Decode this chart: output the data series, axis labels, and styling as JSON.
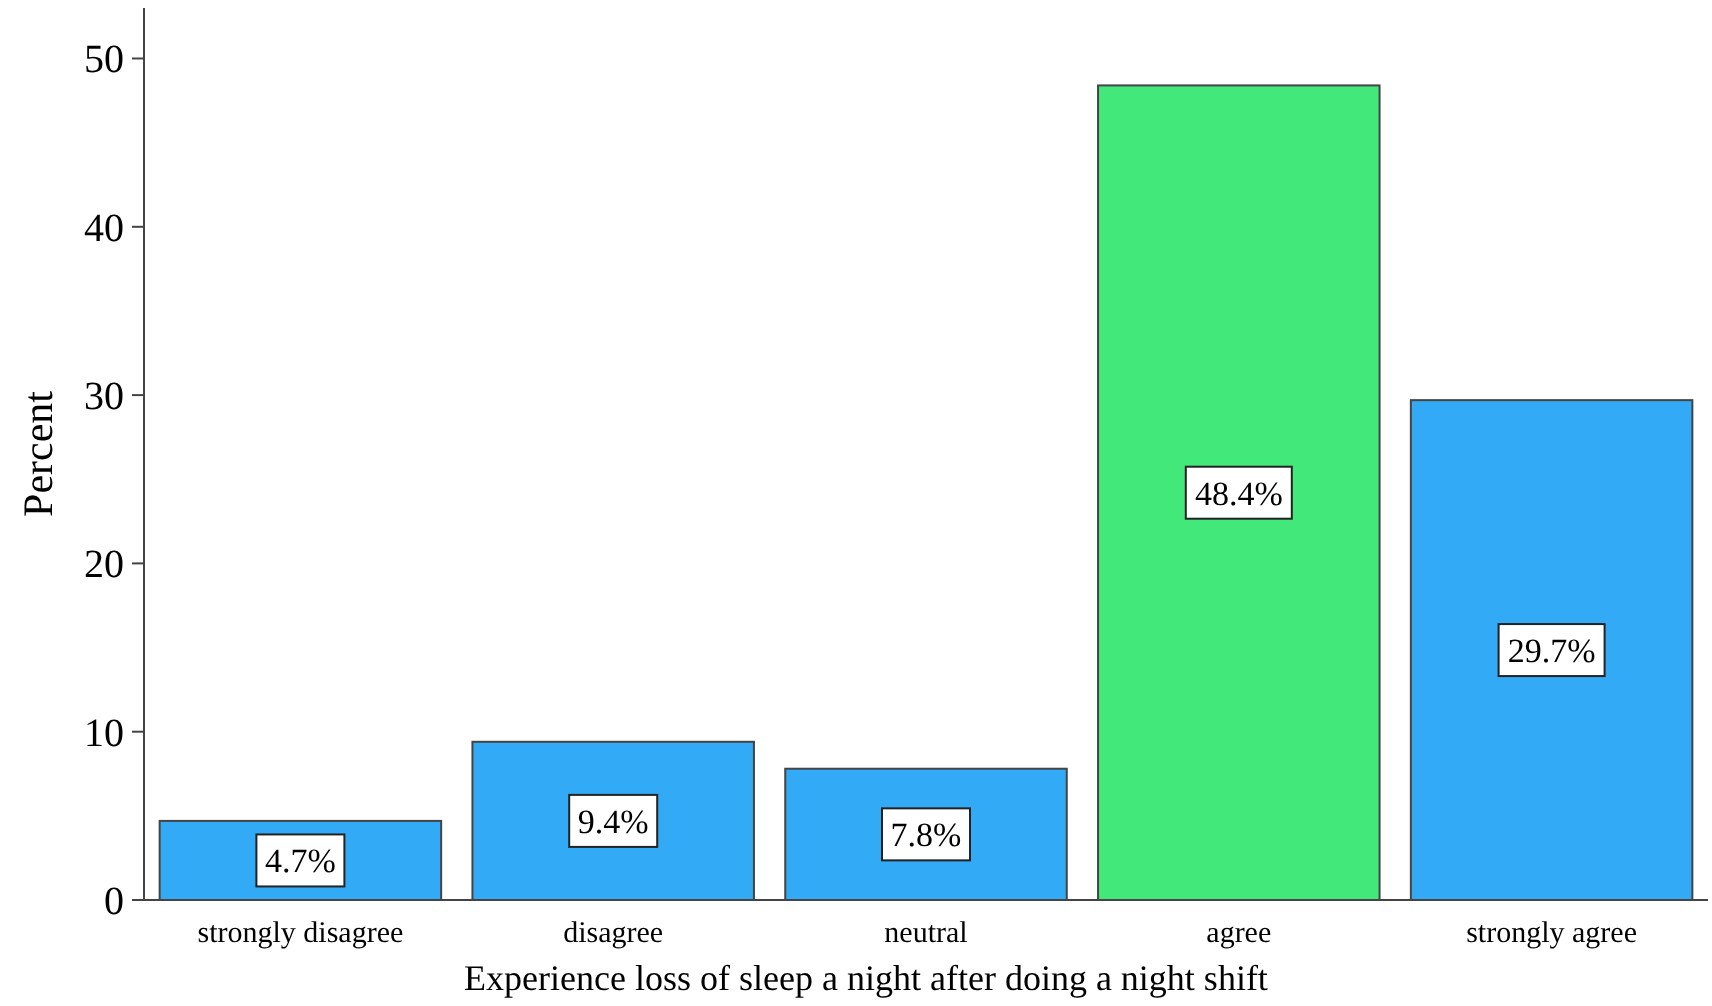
{
  "chart_data": {
    "type": "bar",
    "xlabel": "Experience loss of sleep a night after doing a night shift",
    "ylabel": "Percent",
    "categories": [
      "strongly disagree",
      "disagree",
      "neutral",
      "agree",
      "strongly agree"
    ],
    "values": [
      4.7,
      9.4,
      7.8,
      48.4,
      29.7
    ],
    "colors": [
      "#33aaf5",
      "#33aaf5",
      "#33aaf5",
      "#43e87a",
      "#33aaf5"
    ],
    "value_labels": [
      "4.7%",
      "9.4%",
      "7.8%",
      "48.4%",
      "29.7%"
    ],
    "ylim": [
      0,
      53
    ],
    "yticks": [
      0,
      10,
      20,
      30,
      40,
      50
    ],
    "grid": false
  }
}
